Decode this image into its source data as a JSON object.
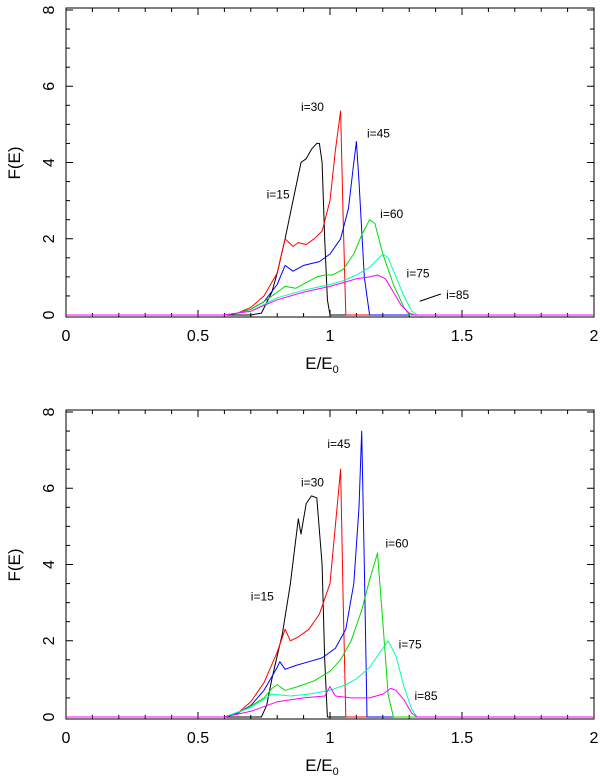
{
  "chart_data": [
    {
      "type": "line",
      "xlabel": "E/E",
      "xlabel_sub": "0",
      "ylabel": "F(E)",
      "xlim": [
        0,
        2
      ],
      "ylim": [
        0,
        8
      ],
      "xticks": [
        "0",
        "0.5",
        "1",
        "1.5",
        "2"
      ],
      "yticks": [
        "0",
        "2",
        "4",
        "6",
        "8"
      ],
      "series": [
        {
          "name": "i=15",
          "color": "#000000",
          "label": "i=15",
          "label_at": [
            0.76,
            3.05
          ],
          "points": [
            [
              0,
              0
            ],
            [
              0.7,
              0
            ],
            [
              0.74,
              0.05
            ],
            [
              0.78,
              0.6
            ],
            [
              0.8,
              1.1
            ],
            [
              0.83,
              2.0
            ],
            [
              0.86,
              3.0
            ],
            [
              0.89,
              4.0
            ],
            [
              0.91,
              4.1
            ],
            [
              0.93,
              4.35
            ],
            [
              0.95,
              4.5
            ],
            [
              0.96,
              4.5
            ],
            [
              0.97,
              4.0
            ],
            [
              0.98,
              2.0
            ],
            [
              0.99,
              0.4
            ],
            [
              1.0,
              0
            ],
            [
              2,
              0
            ]
          ]
        },
        {
          "name": "i=30",
          "color": "#ff0000",
          "label": "i=30",
          "label_at": [
            0.89,
            5.35
          ],
          "points": [
            [
              0,
              0
            ],
            [
              0.6,
              0
            ],
            [
              0.65,
              0.05
            ],
            [
              0.7,
              0.2
            ],
            [
              0.75,
              0.5
            ],
            [
              0.8,
              1.1
            ],
            [
              0.83,
              2.0
            ],
            [
              0.86,
              1.8
            ],
            [
              0.88,
              1.9
            ],
            [
              0.91,
              1.85
            ],
            [
              0.94,
              2.0
            ],
            [
              0.97,
              2.2
            ],
            [
              1.0,
              3.0
            ],
            [
              1.02,
              4.3
            ],
            [
              1.04,
              5.35
            ],
            [
              1.05,
              2.5
            ],
            [
              1.06,
              0
            ],
            [
              2,
              0
            ]
          ]
        },
        {
          "name": "i=45",
          "color": "#0000ff",
          "label": "i=45",
          "label_at": [
            1.14,
            4.65
          ],
          "points": [
            [
              0,
              0
            ],
            [
              0.6,
              0
            ],
            [
              0.65,
              0.05
            ],
            [
              0.7,
              0.15
            ],
            [
              0.75,
              0.35
            ],
            [
              0.8,
              0.8
            ],
            [
              0.83,
              1.3
            ],
            [
              0.86,
              1.15
            ],
            [
              0.9,
              1.3
            ],
            [
              0.93,
              1.35
            ],
            [
              0.96,
              1.4
            ],
            [
              1.0,
              1.6
            ],
            [
              1.04,
              2.0
            ],
            [
              1.07,
              2.8
            ],
            [
              1.09,
              4.0
            ],
            [
              1.1,
              4.55
            ],
            [
              1.11,
              3.5
            ],
            [
              1.13,
              1.0
            ],
            [
              1.15,
              0
            ],
            [
              2,
              0
            ]
          ]
        },
        {
          "name": "i=60",
          "color": "#00dd00",
          "label": "i=60",
          "label_at": [
            1.19,
            2.55
          ],
          "points": [
            [
              0,
              0
            ],
            [
              0.6,
              0
            ],
            [
              0.65,
              0.05
            ],
            [
              0.7,
              0.15
            ],
            [
              0.75,
              0.35
            ],
            [
              0.8,
              0.6
            ],
            [
              0.83,
              0.75
            ],
            [
              0.87,
              0.7
            ],
            [
              0.91,
              0.85
            ],
            [
              0.95,
              1.0
            ],
            [
              0.98,
              1.05
            ],
            [
              1.01,
              1.05
            ],
            [
              1.05,
              1.2
            ],
            [
              1.09,
              1.6
            ],
            [
              1.12,
              2.1
            ],
            [
              1.15,
              2.5
            ],
            [
              1.17,
              2.4
            ],
            [
              1.2,
              1.6
            ],
            [
              1.24,
              0.8
            ],
            [
              1.28,
              0.2
            ],
            [
              1.3,
              0
            ],
            [
              2,
              0
            ]
          ]
        },
        {
          "name": "i=75",
          "color": "#00ffaa",
          "label": "i=75",
          "label_at": [
            1.29,
            0.98
          ],
          "points": [
            [
              0,
              0
            ],
            [
              0.6,
              0
            ],
            [
              0.7,
              0.1
            ],
            [
              0.8,
              0.45
            ],
            [
              0.9,
              0.65
            ],
            [
              1.0,
              0.8
            ],
            [
              1.05,
              0.9
            ],
            [
              1.1,
              1.05
            ],
            [
              1.15,
              1.25
            ],
            [
              1.2,
              1.6
            ],
            [
              1.22,
              1.5
            ],
            [
              1.25,
              1.0
            ],
            [
              1.28,
              0.5
            ],
            [
              1.31,
              0.1
            ],
            [
              1.33,
              0
            ],
            [
              2,
              0
            ]
          ]
        },
        {
          "name": "i=85",
          "color": "#ff00ff",
          "label": "i=85",
          "label_at": [
            1.44,
            0.42
          ],
          "points": [
            [
              0,
              0
            ],
            [
              0.6,
              0
            ],
            [
              0.7,
              0.1
            ],
            [
              0.8,
              0.4
            ],
            [
              0.9,
              0.6
            ],
            [
              1.0,
              0.75
            ],
            [
              1.05,
              0.85
            ],
            [
              1.1,
              0.95
            ],
            [
              1.15,
              1.0
            ],
            [
              1.18,
              1.05
            ],
            [
              1.21,
              0.95
            ],
            [
              1.24,
              0.6
            ],
            [
              1.27,
              0.25
            ],
            [
              1.3,
              0.05
            ],
            [
              1.32,
              0
            ],
            [
              2,
              0
            ]
          ]
        }
      ],
      "leader": {
        "from": [
          1.42,
          0.55
        ],
        "to": [
          1.34,
          0.36
        ]
      }
    },
    {
      "type": "line",
      "xlabel": "E/E",
      "xlabel_sub": "0",
      "ylabel": "F(E)",
      "xlim": [
        0,
        2
      ],
      "ylim": [
        0,
        8
      ],
      "xticks": [
        "0",
        "0.5",
        "1",
        "1.5",
        "2"
      ],
      "yticks": [
        "0",
        "2",
        "4",
        "6",
        "8"
      ],
      "series": [
        {
          "name": "i=15",
          "color": "#000000",
          "label": "i=15",
          "label_at": [
            0.7,
            3.05
          ],
          "points": [
            [
              0,
              0
            ],
            [
              0.74,
              0
            ],
            [
              0.76,
              0.3
            ],
            [
              0.78,
              1.0
            ],
            [
              0.82,
              2.2
            ],
            [
              0.85,
              3.5
            ],
            [
              0.88,
              5.2
            ],
            [
              0.89,
              4.8
            ],
            [
              0.91,
              5.6
            ],
            [
              0.93,
              5.8
            ],
            [
              0.95,
              5.75
            ],
            [
              0.97,
              4.0
            ],
            [
              0.98,
              1.5
            ],
            [
              0.99,
              0
            ],
            [
              2,
              0
            ]
          ]
        },
        {
          "name": "i=30",
          "color": "#ff0000",
          "label": "i=30",
          "label_at": [
            0.89,
            6.05
          ],
          "points": [
            [
              0,
              0
            ],
            [
              0.6,
              0
            ],
            [
              0.65,
              0.1
            ],
            [
              0.7,
              0.4
            ],
            [
              0.75,
              0.9
            ],
            [
              0.8,
              1.7
            ],
            [
              0.83,
              2.3
            ],
            [
              0.85,
              2.0
            ],
            [
              0.88,
              2.1
            ],
            [
              0.92,
              2.3
            ],
            [
              0.96,
              2.7
            ],
            [
              1.0,
              3.5
            ],
            [
              1.02,
              5.0
            ],
            [
              1.04,
              6.5
            ],
            [
              1.05,
              3.0
            ],
            [
              1.06,
              0
            ],
            [
              2,
              0
            ]
          ]
        },
        {
          "name": "i=45",
          "color": "#0000ff",
          "label": "i=45",
          "label_at": [
            0.99,
            7.05
          ],
          "points": [
            [
              0,
              0
            ],
            [
              0.6,
              0
            ],
            [
              0.65,
              0.1
            ],
            [
              0.7,
              0.3
            ],
            [
              0.75,
              0.7
            ],
            [
              0.8,
              1.3
            ],
            [
              0.81,
              1.45
            ],
            [
              0.83,
              1.25
            ],
            [
              0.87,
              1.35
            ],
            [
              0.92,
              1.45
            ],
            [
              0.97,
              1.55
            ],
            [
              1.02,
              1.8
            ],
            [
              1.06,
              2.3
            ],
            [
              1.09,
              3.5
            ],
            [
              1.11,
              5.5
            ],
            [
              1.12,
              7.5
            ],
            [
              1.13,
              4.0
            ],
            [
              1.14,
              0
            ],
            [
              2,
              0
            ]
          ]
        },
        {
          "name": "i=60",
          "color": "#00dd00",
          "label": "i=60",
          "label_at": [
            1.21,
            4.45
          ],
          "points": [
            [
              0,
              0
            ],
            [
              0.6,
              0
            ],
            [
              0.68,
              0.2
            ],
            [
              0.75,
              0.5
            ],
            [
              0.78,
              0.75
            ],
            [
              0.8,
              0.85
            ],
            [
              0.83,
              0.7
            ],
            [
              0.88,
              0.8
            ],
            [
              0.94,
              0.95
            ],
            [
              1.0,
              1.2
            ],
            [
              1.04,
              1.5
            ],
            [
              1.08,
              2.0
            ],
            [
              1.12,
              2.8
            ],
            [
              1.15,
              3.6
            ],
            [
              1.18,
              4.3
            ],
            [
              1.2,
              2.5
            ],
            [
              1.22,
              0.6
            ],
            [
              1.24,
              0
            ],
            [
              2,
              0
            ]
          ]
        },
        {
          "name": "i=75",
          "color": "#00ffaa",
          "label": "i=75",
          "label_at": [
            1.26,
            1.8
          ],
          "points": [
            [
              0,
              0
            ],
            [
              0.6,
              0
            ],
            [
              0.7,
              0.25
            ],
            [
              0.78,
              0.6
            ],
            [
              0.85,
              0.55
            ],
            [
              0.92,
              0.6
            ],
            [
              1.0,
              0.7
            ],
            [
              1.06,
              0.85
            ],
            [
              1.1,
              1.0
            ],
            [
              1.15,
              1.3
            ],
            [
              1.19,
              1.7
            ],
            [
              1.22,
              2.0
            ],
            [
              1.25,
              1.6
            ],
            [
              1.28,
              0.8
            ],
            [
              1.31,
              0.2
            ],
            [
              1.33,
              0
            ],
            [
              2,
              0
            ]
          ]
        },
        {
          "name": "i=85",
          "color": "#ff00ff",
          "label": "i=85",
          "label_at": [
            1.32,
            0.45
          ],
          "points": [
            [
              0,
              0
            ],
            [
              0.6,
              0
            ],
            [
              0.7,
              0.15
            ],
            [
              0.8,
              0.4
            ],
            [
              0.9,
              0.5
            ],
            [
              0.98,
              0.55
            ],
            [
              1.0,
              0.8
            ],
            [
              1.02,
              0.55
            ],
            [
              1.08,
              0.5
            ],
            [
              1.15,
              0.5
            ],
            [
              1.2,
              0.6
            ],
            [
              1.23,
              0.75
            ],
            [
              1.25,
              0.7
            ],
            [
              1.28,
              0.45
            ],
            [
              1.31,
              0.1
            ],
            [
              1.33,
              0
            ],
            [
              2,
              0
            ]
          ]
        }
      ],
      "leader": null
    }
  ]
}
